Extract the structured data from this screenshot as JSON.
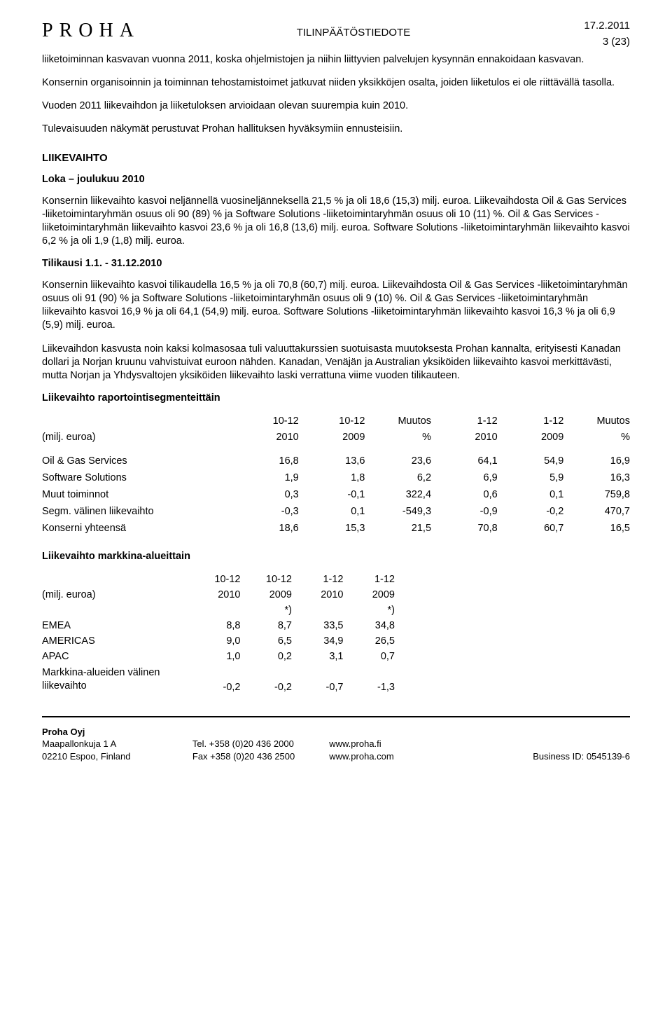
{
  "header": {
    "logo": "PROHA",
    "center": "TILINPÄÄTÖSTIEDOTE",
    "date": "17.2.2011",
    "page_num": "3 (23)"
  },
  "paragraphs": {
    "p1": "liiketoiminnan kasvavan vuonna 2011, koska ohjelmistojen ja niihin liittyvien palvelujen kysynnän ennakoidaan kasvavan.",
    "p2": "Konsernin organisoinnin ja toiminnan tehostamistoimet jatkuvat niiden yksikköjen osalta, joiden liiketulos ei ole riittävällä tasolla.",
    "p3": "Vuoden 2011 liikevaihdon ja liiketuloksen arvioidaan olevan suurempia kuin 2010.",
    "p4": "Tulevaisuuden näkymät perustuvat Prohan hallituksen hyväksymiin ennusteisiin.",
    "liikevaihto_heading": "LIIKEVAIHTO",
    "loka_heading": "Loka – joulukuu 2010",
    "p5": "Konsernin liikevaihto kasvoi neljännellä vuosineljänneksellä 21,5 % ja oli 18,6 (15,3) milj. euroa. Liikevaihdosta Oil & Gas Services -liiketoimintaryhmän osuus oli 90 (89) % ja Software Solutions -liiketoimintaryhmän osuus oli 10 (11) %. Oil & Gas Services -liiketoimintaryhmän liikevaihto kasvoi 23,6 % ja oli 16,8 (13,6) milj. euroa. Software Solutions -liiketoimintaryhmän liikevaihto kasvoi 6,2 % ja oli 1,9 (1,8) milj. euroa.",
    "tilikausi_heading": "Tilikausi 1.1. - 31.12.2010",
    "p6": "Konsernin liikevaihto kasvoi tilikaudella 16,5 % ja oli 70,8 (60,7) milj. euroa. Liikevaihdosta Oil & Gas Services -liiketoimintaryhmän osuus oli 91 (90) % ja Software Solutions -liiketoimintaryhmän osuus oli 9 (10) %. Oil & Gas Services -liiketoimintaryhmän liikevaihto kasvoi 16,9 % ja oli 64,1 (54,9) milj. euroa. Software Solutions -liiketoimintaryhmän liikevaihto kasvoi 16,3 % ja oli 6,9 (5,9) milj. euroa.",
    "p7": "Liikevaihdon kasvusta noin kaksi kolmasosaa tuli valuuttakurssien suotuisasta muutoksesta Prohan kannalta, erityisesti Kanadan dollari ja Norjan kruunu vahvistuivat euroon nähden. Kanadan, Venäjän ja Australian yksiköiden liikevaihto kasvoi merkittävästi, mutta Norjan ja Yhdysvaltojen yksiköiden liikevaihto laski verrattuna viime vuoden tilikauteen.",
    "table1_heading": "Liikevaihto raportointisegmenteittäin",
    "table2_heading": "Liikevaihto markkina-alueittain"
  },
  "table1": {
    "unit_label": "(milj. euroa)",
    "columns": [
      {
        "line1": "10-12",
        "line2": "2010"
      },
      {
        "line1": "10-12",
        "line2": "2009"
      },
      {
        "line1": "Muutos",
        "line2": "%"
      },
      {
        "line1": "1-12",
        "line2": "2010"
      },
      {
        "line1": "1-12",
        "line2": "2009"
      },
      {
        "line1": "Muutos",
        "line2": "%"
      }
    ],
    "rows": [
      {
        "label": "Oil & Gas Services",
        "v": [
          "16,8",
          "13,6",
          "23,6",
          "64,1",
          "54,9",
          "16,9"
        ]
      },
      {
        "label": "Software Solutions",
        "v": [
          "1,9",
          "1,8",
          "6,2",
          "6,9",
          "5,9",
          "16,3"
        ]
      },
      {
        "label": "Muut toiminnot",
        "v": [
          "0,3",
          "-0,1",
          "322,4",
          "0,6",
          "0,1",
          "759,8"
        ]
      },
      {
        "label": "Segm. välinen liikevaihto",
        "v": [
          "-0,3",
          "0,1",
          "-549,3",
          "-0,9",
          "-0,2",
          "470,7"
        ]
      },
      {
        "label": "Konserni yhteensä",
        "v": [
          "18,6",
          "15,3",
          "21,5",
          "70,8",
          "60,7",
          "16,5"
        ]
      }
    ]
  },
  "table2": {
    "unit_label": "(milj. euroa)",
    "columns": [
      {
        "line1": "10-12",
        "line2": "2010",
        "line3": ""
      },
      {
        "line1": "10-12",
        "line2": "2009",
        "line3": "*)"
      },
      {
        "line1": "1-12",
        "line2": "2010",
        "line3": ""
      },
      {
        "line1": "1-12",
        "line2": "2009",
        "line3": "*)"
      }
    ],
    "rows": [
      {
        "label": "EMEA",
        "v": [
          "8,8",
          "8,7",
          "33,5",
          "34,8"
        ]
      },
      {
        "label": "AMERICAS",
        "v": [
          "9,0",
          "6,5",
          "34,9",
          "26,5"
        ]
      },
      {
        "label": "APAC",
        "v": [
          "1,0",
          "0,2",
          "3,1",
          "0,7"
        ]
      },
      {
        "label": "Markkina-alueiden välinen liikevaihto",
        "v": [
          "-0,2",
          "-0,2",
          "-0,7",
          "-1,3"
        ]
      }
    ]
  },
  "footer": {
    "company": "Proha Oyj",
    "addr1": "Maapallonkuja 1 A",
    "addr2": "02210 Espoo, Finland",
    "tel": "Tel. +358 (0)20 436 2000",
    "fax": "Fax +358 (0)20 436 2500",
    "url1": "www.proha.fi",
    "url2": "www.proha.com",
    "bizid": "Business ID: 0545139-6"
  }
}
